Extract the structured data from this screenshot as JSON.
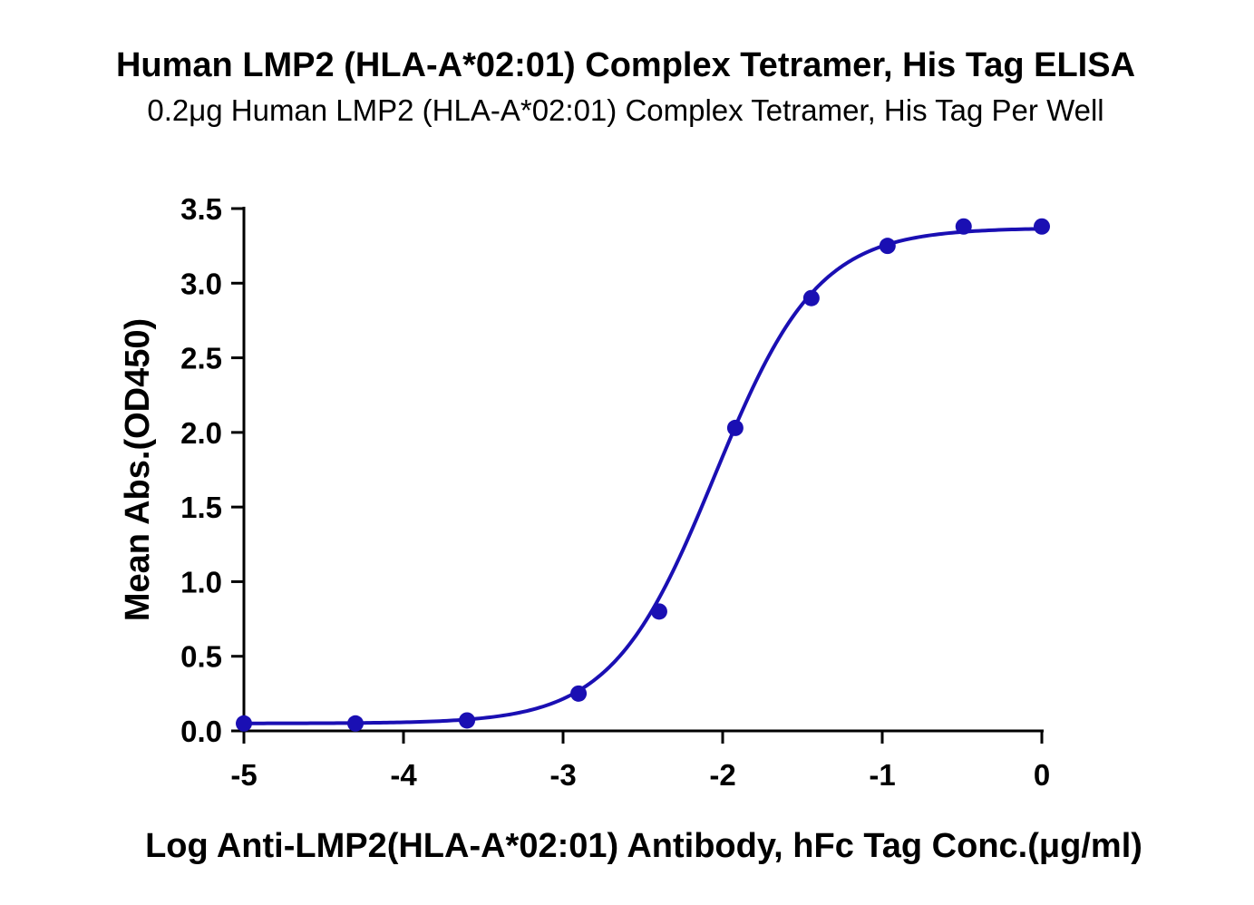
{
  "chart_data": {
    "type": "scatter",
    "title": "Human LMP2 (HLA-A*02:01) Complex Tetramer, His Tag ELISA",
    "subtitle": "0.2μg Human LMP2 (HLA-A*02:01) Complex Tetramer, His Tag Per Well",
    "xlabel": "Log Anti-LMP2(HLA-A*02:01) Antibody, hFc Tag Conc.(μg/ml)",
    "ylabel": "Mean Abs.(OD450)",
    "xlim": [
      -5,
      0
    ],
    "ylim": [
      0,
      3.5
    ],
    "x_ticks": [
      "-5",
      "-4",
      "-3",
      "-2",
      "-1",
      "0"
    ],
    "y_ticks": [
      "0.0",
      "0.5",
      "1.0",
      "1.5",
      "2.0",
      "2.5",
      "3.0",
      "3.5"
    ],
    "grid": false,
    "series": [
      {
        "color": "#1a0fb3",
        "x": [
          -5.0,
          -4.301,
          -3.602,
          -2.903,
          -2.398,
          -1.921,
          -1.444,
          -0.967,
          -0.49,
          0.0
        ],
        "y": [
          0.05,
          0.05,
          0.07,
          0.25,
          0.8,
          2.03,
          2.9,
          3.25,
          3.38,
          3.38
        ],
        "fit": {
          "model": "4PL",
          "bottom": 0.05,
          "top": 3.37,
          "logEC50": -2.05,
          "hill": 1.35
        }
      }
    ]
  }
}
